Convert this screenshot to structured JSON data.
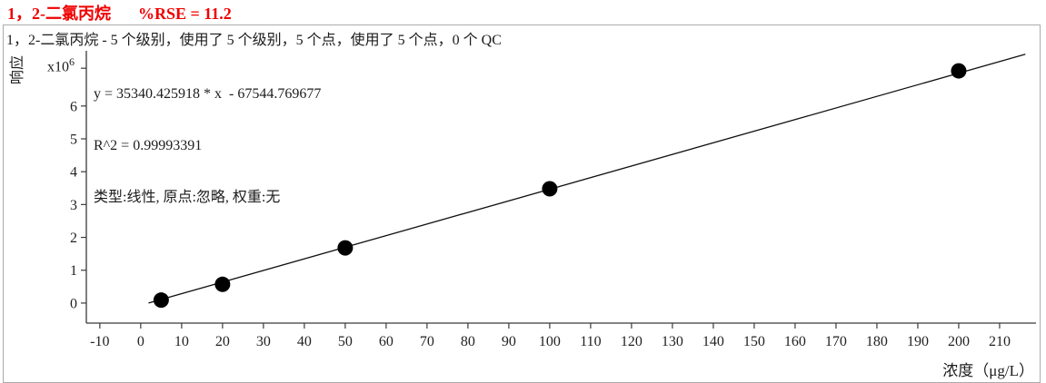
{
  "header": {
    "compound": "1，2-二氯丙烷",
    "rse": "%RSE = 11.2"
  },
  "subtitle": "1，2-二氯丙烷 - 5 个级别，使用了 5 个级别，5 个点，使用了 5 个点，0 个 QC",
  "fit_text": {
    "equation": "y = 35340.425918 * x  - 67544.769677",
    "r_squared": "R^2 = 0.99993391",
    "model": "类型:线性, 原点:忽略, 权重:无"
  },
  "axes": {
    "y_label": "响应",
    "y_multiplier_base": "x10",
    "y_multiplier_exp": "6",
    "x_label": "浓度（μg/L）"
  },
  "colors": {
    "title_red": "#f00000",
    "axis": "#3a3a3a",
    "point": "#000000",
    "panel_border": "#ababab"
  },
  "chart_data": {
    "type": "scatter",
    "title": "1，2-二氯丙烷  %RSE = 11.2",
    "xlabel": "浓度（μg/L）",
    "ylabel": "响应 (x10^6)",
    "grid": false,
    "legend": false,
    "x_range": [
      -13.3,
      218.9
    ],
    "y_range_e6": [
      -0.61,
      7.68
    ],
    "x_ticks": [
      -10,
      0,
      10,
      20,
      30,
      40,
      50,
      60,
      70,
      80,
      90,
      100,
      110,
      120,
      130,
      140,
      150,
      160,
      170,
      180,
      190,
      200,
      210
    ],
    "y_ticks": [
      {
        "v": 0,
        "label": "0"
      },
      {
        "v": 1,
        "label": "1"
      },
      {
        "v": 2,
        "label": "2"
      },
      {
        "v": 3,
        "label": "3"
      },
      {
        "v": 4,
        "label": "4"
      },
      {
        "v": 5,
        "label": "5"
      },
      {
        "v": 6,
        "label": "6"
      },
      {
        "v": 7.15,
        "label": ""
      }
    ],
    "points": [
      {
        "x": 5,
        "y": 90000
      },
      {
        "x": 20,
        "y": 570000
      },
      {
        "x": 50,
        "y": 1680000
      },
      {
        "x": 100,
        "y": 3480000
      },
      {
        "x": 200,
        "y": 7070000
      }
    ],
    "fit": {
      "type": "linear",
      "slope": 35340.425918,
      "intercept": -67544.769677,
      "r_squared": 0.99993391,
      "rse_percent": 11.2,
      "origin": "ignore",
      "weight": "none",
      "draw_x_range": [
        1.911,
        216.3
      ]
    }
  }
}
